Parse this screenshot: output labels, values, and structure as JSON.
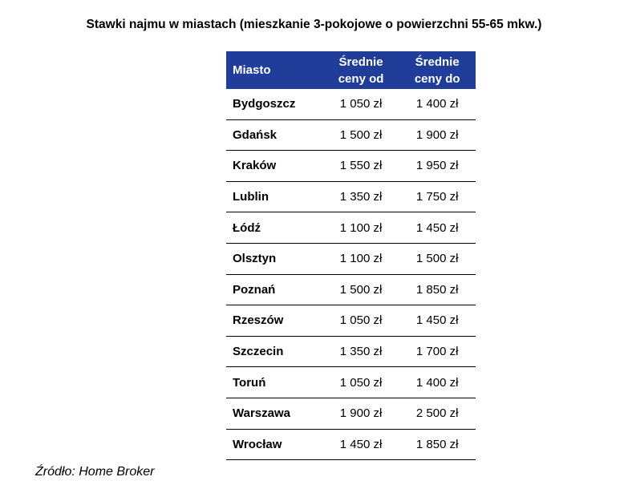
{
  "title": "Stawki najmu  w miastach (mieszkanie 3-pokojowe o powierzchni 55-65 mkw.)",
  "table": {
    "headers": {
      "city": "Miasto",
      "from_line1": "Średnie",
      "from_line2": "ceny od",
      "to_line1": "Średnie",
      "to_line2": "ceny do"
    },
    "header_color": "#1f3d99",
    "rows": [
      {
        "city": "Bydgoszcz",
        "from": "1 050 zł",
        "to": "1 400 zł"
      },
      {
        "city": "Gdańsk",
        "from": "1 500 zł",
        "to": "1 900 zł"
      },
      {
        "city": "Kraków",
        "from": "1 550 zł",
        "to": "1 950 zł"
      },
      {
        "city": "Lublin",
        "from": "1 350 zł",
        "to": "1 750 zł"
      },
      {
        "city": "Łódź",
        "from": "1 100 zł",
        "to": "1 450 zł"
      },
      {
        "city": "Olsztyn",
        "from": "1 100 zł",
        "to": "1 500 zł"
      },
      {
        "city": "Poznań",
        "from": "1 500 zł",
        "to": "1 850 zł"
      },
      {
        "city": "Rzeszów",
        "from": "1 050 zł",
        "to": "1 450 zł"
      },
      {
        "city": "Szczecin",
        "from": "1 350 zł",
        "to": "1 700 zł"
      },
      {
        "city": "Toruń",
        "from": "1 050 zł",
        "to": "1 400 zł"
      },
      {
        "city": "Warszawa",
        "from": "1 900 zł",
        "to": "2 500 zł"
      },
      {
        "city": "Wrocław",
        "from": "1 450 zł",
        "to": "1 850 zł"
      }
    ]
  },
  "source": "Źródło: Home Broker"
}
